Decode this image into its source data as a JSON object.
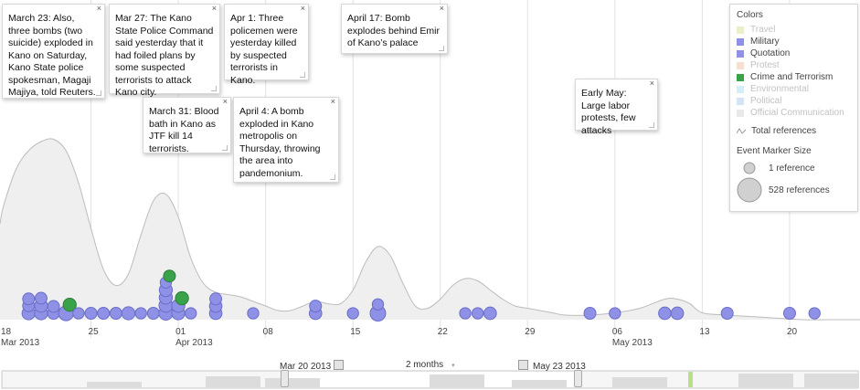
{
  "chart_data": {
    "type": "area",
    "x_ticks": [
      {
        "day": "18",
        "month": "Mar 2013"
      },
      {
        "day": "25",
        "month": ""
      },
      {
        "day": "01",
        "month": "Apr 2013"
      },
      {
        "day": "08",
        "month": ""
      },
      {
        "day": "15",
        "month": ""
      },
      {
        "day": "22",
        "month": ""
      },
      {
        "day": "29",
        "month": ""
      },
      {
        "day": "06",
        "month": "May 2013"
      },
      {
        "day": "13",
        "month": ""
      },
      {
        "day": "20",
        "month": ""
      }
    ],
    "total_references_curve": [
      {
        "x": "2013-03-18",
        "y": 0.5
      },
      {
        "x": "2013-03-19",
        "y": 0.66
      },
      {
        "x": "2013-03-20",
        "y": 0.74
      },
      {
        "x": "2013-03-21",
        "y": 0.78
      },
      {
        "x": "2013-03-22",
        "y": 0.79
      },
      {
        "x": "2013-03-23",
        "y": 0.74
      },
      {
        "x": "2013-03-24",
        "y": 0.6
      },
      {
        "x": "2013-03-25",
        "y": 0.4
      },
      {
        "x": "2013-03-26",
        "y": 0.22
      },
      {
        "x": "2013-03-27",
        "y": 0.15
      },
      {
        "x": "2013-03-28",
        "y": 0.2
      },
      {
        "x": "2013-03-29",
        "y": 0.37
      },
      {
        "x": "2013-03-30",
        "y": 0.52
      },
      {
        "x": "2013-03-31",
        "y": 0.55
      },
      {
        "x": "2013-04-01",
        "y": 0.45
      },
      {
        "x": "2013-04-02",
        "y": 0.27
      },
      {
        "x": "2013-04-03",
        "y": 0.16
      },
      {
        "x": "2013-04-04",
        "y": 0.12
      },
      {
        "x": "2013-04-05",
        "y": 0.11
      },
      {
        "x": "2013-04-06",
        "y": 0.1
      },
      {
        "x": "2013-04-07",
        "y": 0.08
      },
      {
        "x": "2013-04-08",
        "y": 0.06
      },
      {
        "x": "2013-04-09",
        "y": 0.04
      },
      {
        "x": "2013-04-10",
        "y": 0.04
      },
      {
        "x": "2013-04-11",
        "y": 0.06
      },
      {
        "x": "2013-04-12",
        "y": 0.08
      },
      {
        "x": "2013-04-13",
        "y": 0.07
      },
      {
        "x": "2013-04-14",
        "y": 0.07
      },
      {
        "x": "2013-04-15",
        "y": 0.13
      },
      {
        "x": "2013-04-16",
        "y": 0.25
      },
      {
        "x": "2013-04-17",
        "y": 0.32
      },
      {
        "x": "2013-04-18",
        "y": 0.28
      },
      {
        "x": "2013-04-19",
        "y": 0.16
      },
      {
        "x": "2013-04-20",
        "y": 0.06
      },
      {
        "x": "2013-04-21",
        "y": 0.05
      },
      {
        "x": "2013-04-22",
        "y": 0.09
      },
      {
        "x": "2013-04-23",
        "y": 0.15
      },
      {
        "x": "2013-04-24",
        "y": 0.18
      },
      {
        "x": "2013-04-25",
        "y": 0.17
      },
      {
        "x": "2013-04-26",
        "y": 0.13
      },
      {
        "x": "2013-04-27",
        "y": 0.09
      },
      {
        "x": "2013-04-28",
        "y": 0.06
      },
      {
        "x": "2013-04-29",
        "y": 0.05
      },
      {
        "x": "2013-04-30",
        "y": 0.04
      },
      {
        "x": "2013-05-01",
        "y": 0.03
      },
      {
        "x": "2013-05-02",
        "y": 0.02
      },
      {
        "x": "2013-05-04",
        "y": 0.02
      },
      {
        "x": "2013-05-06",
        "y": 0.03
      },
      {
        "x": "2013-05-08",
        "y": 0.05
      },
      {
        "x": "2013-05-10",
        "y": 0.09
      },
      {
        "x": "2013-05-11",
        "y": 0.09
      },
      {
        "x": "2013-05-12",
        "y": 0.07
      },
      {
        "x": "2013-05-13",
        "y": 0.03
      },
      {
        "x": "2013-05-15",
        "y": 0.02
      },
      {
        "x": "2013-05-18",
        "y": 0.01
      },
      {
        "x": "2013-05-21",
        "y": 0.0
      },
      {
        "x": "2013-05-23",
        "y": 0.0
      }
    ],
    "event_markers": [
      {
        "date": "2013-03-20",
        "category": "Military",
        "references": 12
      },
      {
        "date": "2013-03-20",
        "category": "Military",
        "references": 10
      },
      {
        "date": "2013-03-20",
        "category": "Military",
        "references": 10
      },
      {
        "date": "2013-03-21",
        "category": "Military",
        "references": 12
      },
      {
        "date": "2013-03-21",
        "category": "Military",
        "references": 12
      },
      {
        "date": "2013-03-21",
        "category": "Military",
        "references": 10
      },
      {
        "date": "2013-03-22",
        "category": "Military",
        "references": 10
      },
      {
        "date": "2013-03-22",
        "category": "Military",
        "references": 10
      },
      {
        "date": "2013-03-23",
        "category": "Military",
        "references": 15
      },
      {
        "date": "2013-03-23",
        "category": "Crime and Terrorism",
        "references": 12
      },
      {
        "date": "2013-03-24",
        "category": "Military",
        "references": 9
      },
      {
        "date": "2013-03-25",
        "category": "Military",
        "references": 10
      },
      {
        "date": "2013-03-26",
        "category": "Military",
        "references": 10
      },
      {
        "date": "2013-03-27",
        "category": "Military",
        "references": 10
      },
      {
        "date": "2013-03-28",
        "category": "Military",
        "references": 12
      },
      {
        "date": "2013-03-29",
        "category": "Military",
        "references": 9
      },
      {
        "date": "2013-03-30",
        "category": "Military",
        "references": 10
      },
      {
        "date": "2013-03-31",
        "category": "Military",
        "references": 13
      },
      {
        "date": "2013-03-31",
        "category": "Military",
        "references": 13
      },
      {
        "date": "2013-03-31",
        "category": "Military",
        "references": 12
      },
      {
        "date": "2013-03-31",
        "category": "Military",
        "references": 12
      },
      {
        "date": "2013-03-31",
        "category": "Military",
        "references": 9
      },
      {
        "date": "2013-03-31",
        "category": "Crime and Terrorism",
        "references": 10
      },
      {
        "date": "2013-04-01",
        "category": "Military",
        "references": 12
      },
      {
        "date": "2013-04-01",
        "category": "Military",
        "references": 12
      },
      {
        "date": "2013-04-01",
        "category": "Crime and Terrorism",
        "references": 12
      },
      {
        "date": "2013-04-02",
        "category": "Military",
        "references": 9
      },
      {
        "date": "2013-04-04",
        "category": "Military",
        "references": 11
      },
      {
        "date": "2013-04-04",
        "category": "Military",
        "references": 11
      },
      {
        "date": "2013-04-04",
        "category": "Military",
        "references": 10
      },
      {
        "date": "2013-04-07",
        "category": "Military",
        "references": 9
      },
      {
        "date": "2013-04-12",
        "category": "Military",
        "references": 11
      },
      {
        "date": "2013-04-12",
        "category": "Military",
        "references": 10
      },
      {
        "date": "2013-04-15",
        "category": "Military",
        "references": 9
      },
      {
        "date": "2013-04-17",
        "category": "Military",
        "references": 16
      },
      {
        "date": "2013-04-17",
        "category": "Military",
        "references": 9
      },
      {
        "date": "2013-04-24",
        "category": "Military",
        "references": 9
      },
      {
        "date": "2013-04-25",
        "category": "Military",
        "references": 9
      },
      {
        "date": "2013-04-26",
        "category": "Military",
        "references": 11
      },
      {
        "date": "2013-05-04",
        "category": "Military",
        "references": 10
      },
      {
        "date": "2013-05-06",
        "category": "Military",
        "references": 9
      },
      {
        "date": "2013-05-10",
        "category": "Military",
        "references": 11
      },
      {
        "date": "2013-05-11",
        "category": "Military",
        "references": 11
      },
      {
        "date": "2013-05-15",
        "category": "Military",
        "references": 10
      },
      {
        "date": "2013-05-20",
        "category": "Military",
        "references": 10
      },
      {
        "date": "2013-05-22",
        "category": "Military",
        "references": 9
      }
    ],
    "annotations": [
      {
        "text": "March 23: Also, three bombs (two suicide) exploded in Kano on Saturday, Kano State police spokesman, Magaji Majiya, told Reuters."
      },
      {
        "text": "Mar 27: The Kano State Police Command said yesterday that it had foiled plans by some suspected terrorists to attack Kano city."
      },
      {
        "text": "Apr 1: Three policemen were yesterday killed by suspected terrorists in Kano."
      },
      {
        "text": "April 17: Bomb explodes behind Emir of Kano’s palace"
      },
      {
        "text": "March 31: Blood bath in Kano as JTF kill 14 terrorists."
      },
      {
        "text": "April 4: A bomb exploded in Kano metropolis on Thursday, throwing the area into pandemonium."
      },
      {
        "text": "Early May: Large labor protests, few attacks"
      }
    ],
    "legend": {
      "placement": "top-right",
      "title": "Colors",
      "items": [
        {
          "label": "Travel",
          "color": "#d6dc8a",
          "active": false
        },
        {
          "label": "Military",
          "color": "#8e91e6",
          "active": true
        },
        {
          "label": "Quotation",
          "color": "#8e91e6",
          "active": true
        },
        {
          "label": "Protest",
          "color": "#f3b99a",
          "active": false
        },
        {
          "label": "Crime and Terrorism",
          "color": "#3aa34a",
          "active": true
        },
        {
          "label": "Environmental",
          "color": "#9fd6ea",
          "active": false
        },
        {
          "label": "Political",
          "color": "#9fc4ea",
          "active": false
        },
        {
          "label": "Official Communication",
          "color": "#cfcfcf",
          "active": false
        }
      ],
      "total_label": "Total references",
      "size_title": "Event Marker Size",
      "size_small_label": "1 reference",
      "size_large_label": "528 references"
    },
    "grid": true
  },
  "controls": {
    "start_date": "Mar 20 2013",
    "end_date": "May 23 2013",
    "period": "2 months",
    "close_glyph": "×"
  },
  "colors": {
    "marker": "#8e91e6",
    "marker_stroke": "#6a6dc8",
    "crime": "#3aa34a",
    "area_fill": "#efefef",
    "area_stroke": "#bcbcbc"
  }
}
